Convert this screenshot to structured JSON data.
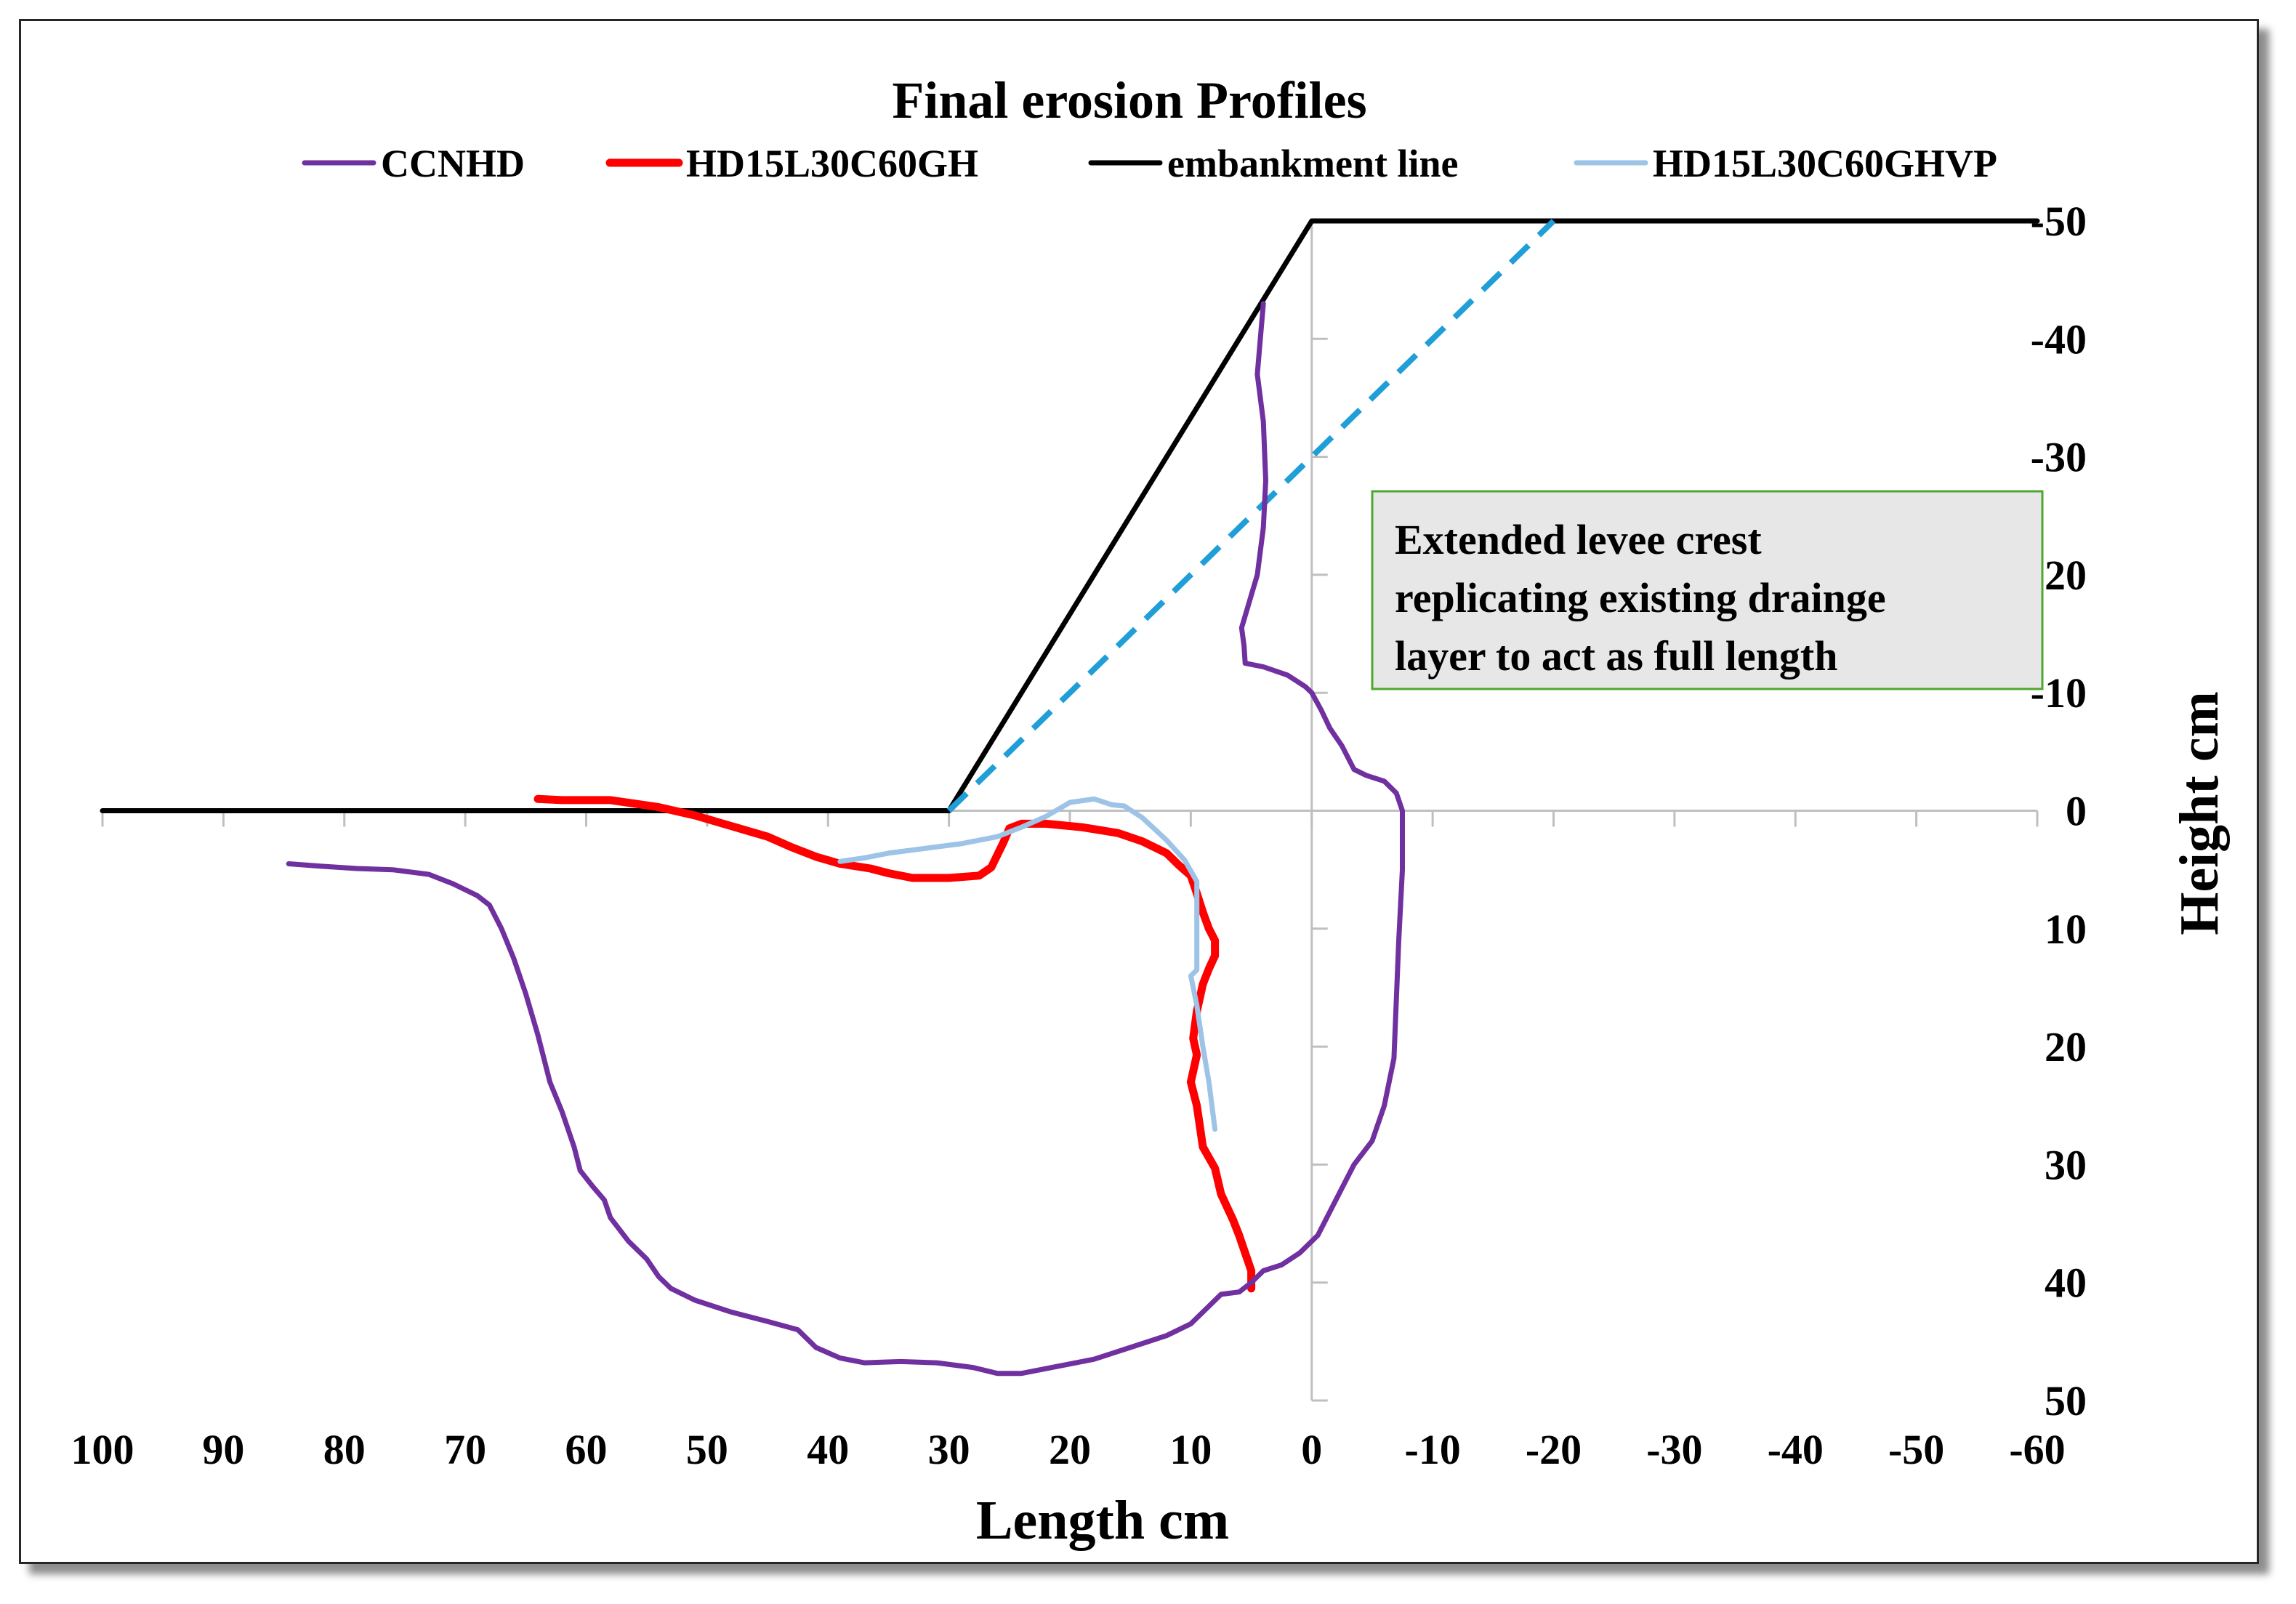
{
  "chart_data": {
    "type": "line",
    "title": "Final erosion Profiles",
    "xlabel": "Length cm",
    "ylabel": "Height cm",
    "xlim": [
      100,
      -60
    ],
    "ylim": [
      -50,
      50
    ],
    "x_ticks": [
      100,
      90,
      80,
      70,
      60,
      50,
      40,
      30,
      20,
      10,
      0,
      -10,
      -20,
      -30,
      -40,
      -50,
      -60
    ],
    "y_ticks": [
      -50,
      -40,
      -30,
      -20,
      -10,
      0,
      10,
      20,
      30,
      40,
      50
    ],
    "grid": false,
    "legend_position": "top",
    "series": [
      {
        "name": "CCNHD",
        "color": "#7030a0",
        "dashed": false,
        "points": [
          [
            84.6,
            4.5
          ],
          [
            82,
            4.7
          ],
          [
            79,
            4.9
          ],
          [
            76,
            5
          ],
          [
            73,
            5.4
          ],
          [
            71,
            6.2
          ],
          [
            69,
            7.2
          ],
          [
            68,
            8
          ],
          [
            67,
            10
          ],
          [
            66,
            12.5
          ],
          [
            65,
            15.5
          ],
          [
            64,
            19
          ],
          [
            63.5,
            21
          ],
          [
            63,
            23
          ],
          [
            62,
            25.5
          ],
          [
            61,
            28.5
          ],
          [
            60.5,
            30.5
          ],
          [
            59.5,
            31.8
          ],
          [
            58.5,
            33
          ],
          [
            58,
            34.5
          ],
          [
            56.5,
            36.5
          ],
          [
            55,
            38
          ],
          [
            54,
            39.5
          ],
          [
            53,
            40.5
          ],
          [
            51,
            41.5
          ],
          [
            48,
            42.5
          ],
          [
            45,
            43.3
          ],
          [
            42.5,
            44
          ],
          [
            41,
            45.5
          ],
          [
            39,
            46.4
          ],
          [
            37,
            46.8
          ],
          [
            34,
            46.7
          ],
          [
            31,
            46.8
          ],
          [
            28,
            47.2
          ],
          [
            26,
            47.7
          ],
          [
            24,
            47.7
          ],
          [
            21,
            47.1
          ],
          [
            18,
            46.5
          ],
          [
            15,
            45.5
          ],
          [
            12,
            44.5
          ],
          [
            10,
            43.5
          ],
          [
            8.5,
            42
          ],
          [
            7.5,
            41
          ],
          [
            6,
            40.8
          ],
          [
            5,
            40
          ],
          [
            4,
            39
          ],
          [
            2.5,
            38.5
          ],
          [
            1,
            37.5
          ],
          [
            -0.5,
            36
          ],
          [
            -1.5,
            34
          ],
          [
            -2.5,
            32
          ],
          [
            -3.5,
            30
          ],
          [
            -5,
            28
          ],
          [
            -6,
            25
          ],
          [
            -6.8,
            21
          ],
          [
            -7,
            16
          ],
          [
            -7.2,
            11
          ],
          [
            -7.5,
            5
          ],
          [
            -7.5,
            0
          ],
          [
            -7,
            -1.5
          ],
          [
            -6,
            -2.5
          ],
          [
            -4.5,
            -3
          ],
          [
            -3.5,
            -3.5
          ],
          [
            -2.5,
            -5.5
          ],
          [
            -1.5,
            -7
          ],
          [
            -0.8,
            -8.5
          ],
          [
            0,
            -10
          ],
          [
            0.5,
            -10.5
          ],
          [
            2,
            -11.5
          ],
          [
            4,
            -12.2
          ],
          [
            5.5,
            -12.5
          ],
          [
            5.6,
            -14
          ],
          [
            5.8,
            -15.5
          ],
          [
            4.5,
            -20
          ],
          [
            4,
            -24
          ],
          [
            3.8,
            -28
          ],
          [
            4,
            -33
          ],
          [
            4.5,
            -37
          ],
          [
            4,
            -43
          ]
        ]
      },
      {
        "name": "HD15L30C60GH",
        "color": "#ff0000",
        "dashed": false,
        "points": [
          [
            64,
            -1
          ],
          [
            62,
            -0.9
          ],
          [
            58,
            -0.9
          ],
          [
            54,
            -0.3
          ],
          [
            51,
            0.4
          ],
          [
            48,
            1.3
          ],
          [
            45,
            2.2
          ],
          [
            43,
            3.1
          ],
          [
            41,
            3.9
          ],
          [
            39,
            4.5
          ],
          [
            36.5,
            4.9
          ],
          [
            35,
            5.3
          ],
          [
            33,
            5.7
          ],
          [
            30,
            5.7
          ],
          [
            27.5,
            5.5
          ],
          [
            26.5,
            4.8
          ],
          [
            25.5,
            2.7
          ],
          [
            25,
            1.5
          ],
          [
            24,
            1.1
          ],
          [
            22,
            1.1
          ],
          [
            19,
            1.4
          ],
          [
            16,
            1.9
          ],
          [
            14,
            2.6
          ],
          [
            12,
            3.6
          ],
          [
            11,
            4.6
          ],
          [
            10,
            5.5
          ],
          [
            9.5,
            7
          ],
          [
            9,
            8.6
          ],
          [
            8.5,
            10
          ],
          [
            8,
            11
          ],
          [
            8,
            12.3
          ],
          [
            8.5,
            13.4
          ],
          [
            9,
            14.7
          ],
          [
            9.5,
            17
          ],
          [
            9.8,
            19.3
          ],
          [
            9.5,
            20.7
          ],
          [
            10,
            23
          ],
          [
            9.5,
            25
          ],
          [
            9,
            28.5
          ],
          [
            8,
            30.3
          ],
          [
            7.5,
            32.5
          ],
          [
            6.5,
            34.7
          ],
          [
            6,
            36
          ],
          [
            5.5,
            37.5
          ],
          [
            5,
            39
          ],
          [
            5,
            40.5
          ]
        ]
      },
      {
        "name": "embankment line",
        "color": "#000000",
        "dashed": false,
        "points": [
          [
            100,
            0
          ],
          [
            30,
            0
          ],
          [
            0,
            -50
          ],
          [
            -60,
            -50
          ]
        ]
      },
      {
        "name": "HD15L30C60GHVP",
        "color": "#9dc3e6",
        "dashed": false,
        "points": [
          [
            39,
            4.3
          ],
          [
            37,
            4
          ],
          [
            35,
            3.6
          ],
          [
            32,
            3.2
          ],
          [
            29,
            2.8
          ],
          [
            26,
            2.2
          ],
          [
            24,
            1.4
          ],
          [
            22,
            0.5
          ],
          [
            20,
            -0.7
          ],
          [
            18,
            -1
          ],
          [
            16.5,
            -0.5
          ],
          [
            15.5,
            -0.4
          ],
          [
            14,
            0.6
          ],
          [
            12,
            2.5
          ],
          [
            10.5,
            4.2
          ],
          [
            9.5,
            6
          ],
          [
            9.5,
            8.5
          ],
          [
            9.5,
            11.5
          ],
          [
            9.5,
            13.5
          ],
          [
            10,
            14
          ],
          [
            9.5,
            16.5
          ],
          [
            9,
            20
          ],
          [
            8.5,
            23
          ],
          [
            8,
            27
          ]
        ]
      },
      {
        "name": "",
        "color": "#1f9ed8",
        "dashed": true,
        "points": [
          [
            30,
            0
          ],
          [
            -20,
            -50
          ]
        ]
      }
    ],
    "annotation": {
      "lines": [
        "Extended levee crest",
        "replicating existing drainge",
        "layer to act as full length"
      ]
    }
  }
}
